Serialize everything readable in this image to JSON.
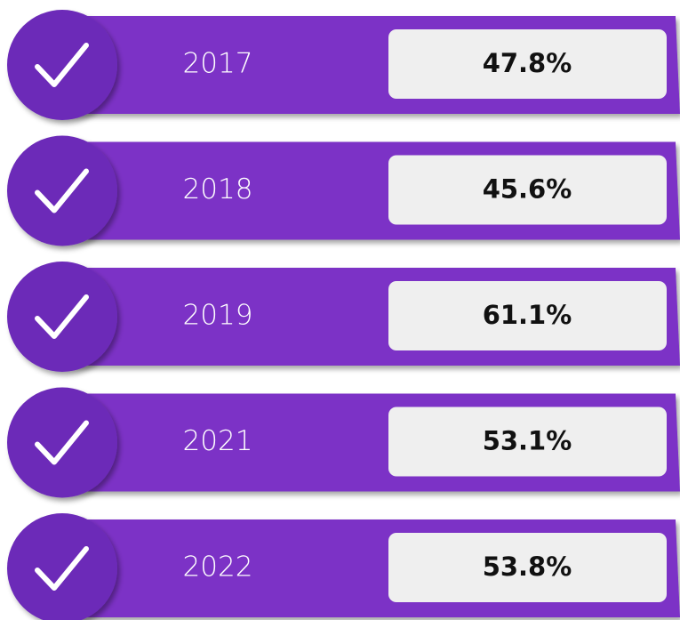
{
  "items": [
    {
      "label": "2017",
      "value": "47.8%"
    },
    {
      "label": "2018",
      "value": "45.6%"
    },
    {
      "label": "2019",
      "value": "61.1%"
    },
    {
      "label": "2021",
      "value": "53.1%"
    },
    {
      "label": "2022",
      "value": "53.8%"
    }
  ]
}
